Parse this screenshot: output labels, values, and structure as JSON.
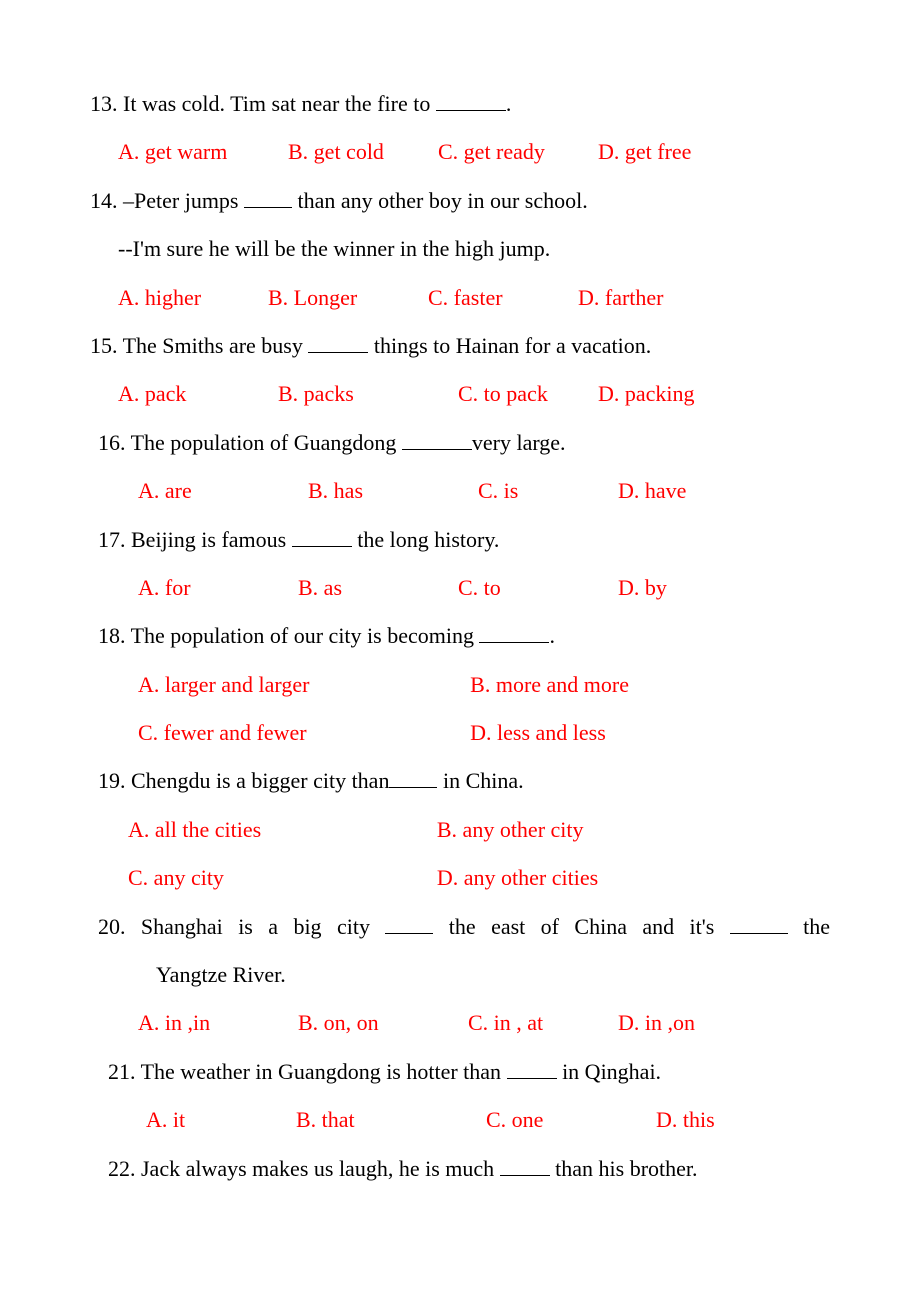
{
  "text_color": "#000000",
  "option_color": "#ff0000",
  "background_color": "#ffffff",
  "font_family": "Times New Roman",
  "font_size_pt": 16,
  "questions": {
    "q13": {
      "num": "13.",
      "text_before": " It was cold. Tim sat near the fire to  ",
      "text_after": ".",
      "blank_width": 70,
      "opts": {
        "a": "A. get warm",
        "b": "B. get cold",
        "c": "C. get ready",
        "d": "D. get free"
      },
      "opt_widths": [
        170,
        150,
        160,
        130
      ]
    },
    "q14": {
      "num": "14.",
      "text_before": " –Peter jumps  ",
      "text_after": "  than any other boy in our school.",
      "blank_width": 48,
      "followup": "--I'm sure he will be the winner in the high jump.",
      "opts": {
        "a": "A. higher",
        "b": "B. Longer",
        "c": "C. faster",
        "d": "D. farther"
      },
      "opt_widths": [
        150,
        160,
        150,
        130
      ]
    },
    "q15": {
      "num": "15.",
      "text_before": " The Smiths are busy  ",
      "text_after": "  things to Hainan for a vacation.",
      "blank_width": 60,
      "opts": {
        "a": "A. pack",
        "b": "B. packs",
        "c": "C. to pack",
        "d": "D. packing"
      },
      "opt_widths": [
        160,
        180,
        140,
        130
      ]
    },
    "q16": {
      "num": "16.",
      "text_before": " The population of Guangdong  ",
      "text_after": "very large.",
      "blank_width": 70,
      "opts": {
        "a": "A. are",
        "b": "B. has",
        "c": "C. is",
        "d": "D. have"
      },
      "opt_widths": [
        170,
        170,
        140,
        120
      ]
    },
    "q17": {
      "num": "17.",
      "text_before": " Beijing is famous  ",
      "text_after": "  the long history.",
      "blank_width": 60,
      "opts": {
        "a": "A. for",
        "b": "B. as",
        "c": "C. to",
        "d": "D. by"
      },
      "opt_widths": [
        160,
        160,
        160,
        100
      ]
    },
    "q18": {
      "num": "18.",
      "text_before": " The population of our city is becoming  ",
      "text_after": ".",
      "blank_width": 70,
      "opts": {
        "a": "A. larger and larger",
        "b": "B. more and more",
        "c": "C. fewer and fewer",
        "d": "D. less and less"
      }
    },
    "q19": {
      "num": "19.",
      "text_before": " Chengdu is a bigger city than",
      "text_after": "  in China.",
      "blank_width": 48,
      "opts": {
        "a": "A. all the cities",
        "b": "B. any other city",
        "c": "C. any city",
        "d": "D. any other cities"
      }
    },
    "q20": {
      "num": "20.",
      "text_before": " Shanghai is a big city ",
      "text_mid": " the east of China and it's ",
      "text_after": " the",
      "blank1_width": 48,
      "blank2_width": 58,
      "cont": "Yangtze River.",
      "opts": {
        "a": "A. in ,in",
        "b": "B. on, on",
        "c": "C. in , at",
        "d": "D. in ,on"
      },
      "opt_widths": [
        160,
        170,
        150,
        120
      ]
    },
    "q21": {
      "num": "21.",
      "text_before": " The weather in Guangdong is hotter than  ",
      "text_after": "  in Qinghai.",
      "blank_width": 50,
      "opts": {
        "a": "A. it",
        "b": "B. that",
        "c": "C. one",
        "d": "D. this"
      },
      "opt_widths": [
        150,
        190,
        170,
        110
      ]
    },
    "q22": {
      "num": "22.",
      "text_before": " Jack always makes us laugh, he is much  ",
      "text_after": "  than his brother.",
      "blank_width": 50
    }
  }
}
